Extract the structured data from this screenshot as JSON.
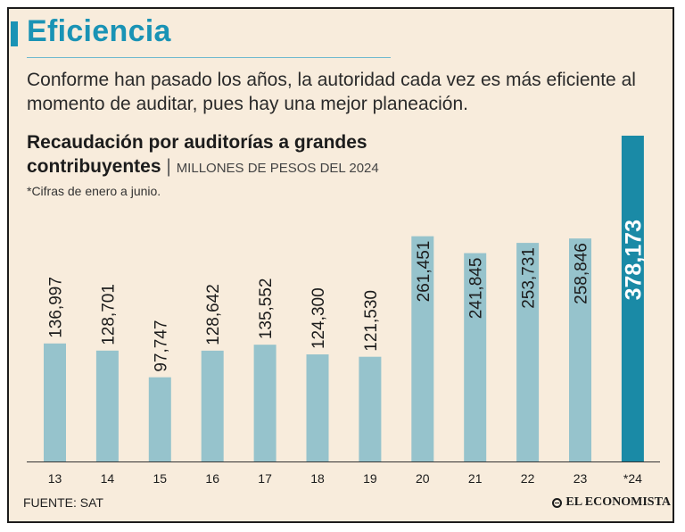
{
  "header": {
    "title": "Eficiencia",
    "intro": "Conforme han pasado los años, la autoridad cada vez es más eficiente al momento de auditar, pues hay una mejor planeación."
  },
  "chart_title": {
    "line1": "Recaudación por auditorías a grandes",
    "line2": "contribuyentes",
    "separator": "|",
    "unit": "MILLONES DE PESOS DEL 2024",
    "note": "*Cifras de enero a junio."
  },
  "footer": {
    "source": "FUENTE: SAT",
    "logo": "EL ECONOMISTA"
  },
  "colors": {
    "accent": "#1a93b5",
    "bar": "#96c3cc",
    "highlight": "#1a8aa6",
    "background": "#f8ecdc"
  },
  "chart_data": {
    "type": "bar",
    "title": "Recaudación por auditorías a grandes contribuyentes",
    "ylabel": "Millones de pesos del 2024",
    "xlabel": "",
    "categories": [
      "13",
      "14",
      "15",
      "16",
      "17",
      "18",
      "19",
      "20",
      "21",
      "22",
      "23",
      "*24"
    ],
    "values": [
      136997,
      128701,
      97747,
      128642,
      135552,
      124300,
      121530,
      261451,
      241845,
      253731,
      258846,
      378173
    ],
    "labels": [
      "136,997",
      "128,701",
      "97,747",
      "128,642",
      "135,552",
      "124,300",
      "121,530",
      "261,451",
      "241,845",
      "253,731",
      "258,846",
      "378,173"
    ],
    "highlight_index": 11,
    "ylim": [
      0,
      378173
    ],
    "grid": false,
    "legend": "none"
  }
}
